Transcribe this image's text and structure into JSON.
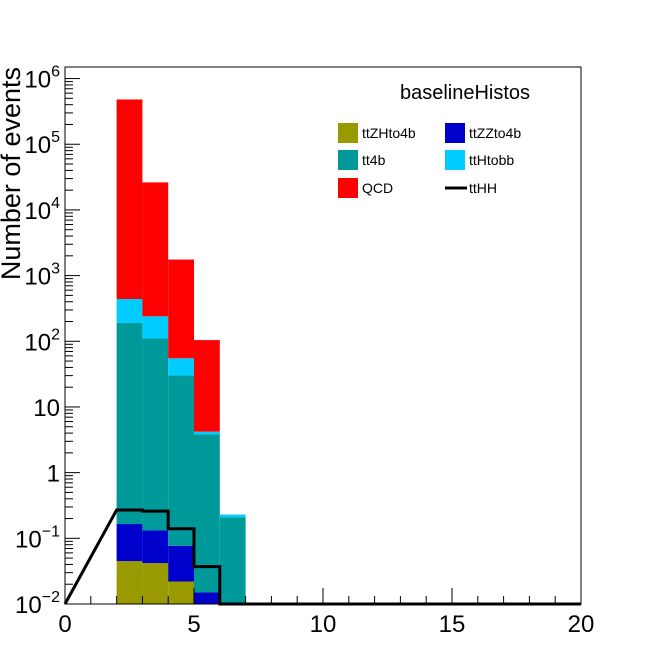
{
  "chart_data": {
    "type": "bar",
    "stacked": true,
    "title": "baselineHistos",
    "xlabel": "",
    "ylabel": "Number of events",
    "xlim": [
      0,
      20
    ],
    "ylim": [
      0.01,
      1500000
    ],
    "yscale": "log",
    "x_ticks": [
      "0",
      "5",
      "10",
      "15",
      "20"
    ],
    "x_tick_values": [
      0,
      5,
      10,
      15,
      20
    ],
    "y_ticks": [
      {
        "value": 0.01,
        "base": "10",
        "exp": "−2"
      },
      {
        "value": 0.1,
        "base": "10",
        "exp": "−1"
      },
      {
        "value": 1,
        "base": "1",
        "exp": ""
      },
      {
        "value": 10,
        "base": "10",
        "exp": ""
      },
      {
        "value": 100,
        "base": "10",
        "exp": "2"
      },
      {
        "value": 1000,
        "base": "10",
        "exp": "3"
      },
      {
        "value": 10000,
        "base": "10",
        "exp": "4"
      },
      {
        "value": 100000,
        "base": "10",
        "exp": "5"
      },
      {
        "value": 1000000,
        "base": "10",
        "exp": "6"
      }
    ],
    "bin_edges": [
      2,
      3,
      4,
      5,
      6,
      7
    ],
    "series": [
      {
        "name": "ttZHto4b",
        "color": "#999900",
        "values": [
          0.045,
          0.042,
          0.022,
          0.0,
          0.0
        ]
      },
      {
        "name": "ttZZto4b",
        "color": "#0000cc",
        "values": [
          0.12,
          0.09,
          0.055,
          0.015,
          0.0
        ]
      },
      {
        "name": "tt4b",
        "color": "#009999",
        "values": [
          190,
          110,
          30,
          3.8,
          0.21
        ]
      },
      {
        "name": "ttHtobb",
        "color": "#00ccff",
        "values": [
          250,
          130,
          25,
          0.4,
          0.02
        ]
      },
      {
        "name": "QCD",
        "color": "#ff0000",
        "values": [
          480000,
          26000,
          1700,
          100,
          0.0
        ]
      }
    ],
    "overlay": {
      "name": "ttHH",
      "color": "#000000",
      "style": "line",
      "values": [
        0.27,
        0.26,
        0.14,
        0.037,
        0.0
      ]
    },
    "legend": {
      "placement": "top-right",
      "entries": [
        {
          "name": "ttZHto4b",
          "color": "#999900",
          "style": "fill"
        },
        {
          "name": "ttZZto4b",
          "color": "#0000cc",
          "style": "fill"
        },
        {
          "name": "tt4b",
          "color": "#009999",
          "style": "fill"
        },
        {
          "name": "ttHtobb",
          "color": "#00ccff",
          "style": "fill"
        },
        {
          "name": "QCD",
          "color": "#ff0000",
          "style": "fill"
        },
        {
          "name": "ttHH",
          "color": "#000000",
          "style": "line"
        }
      ]
    },
    "grid": false
  }
}
